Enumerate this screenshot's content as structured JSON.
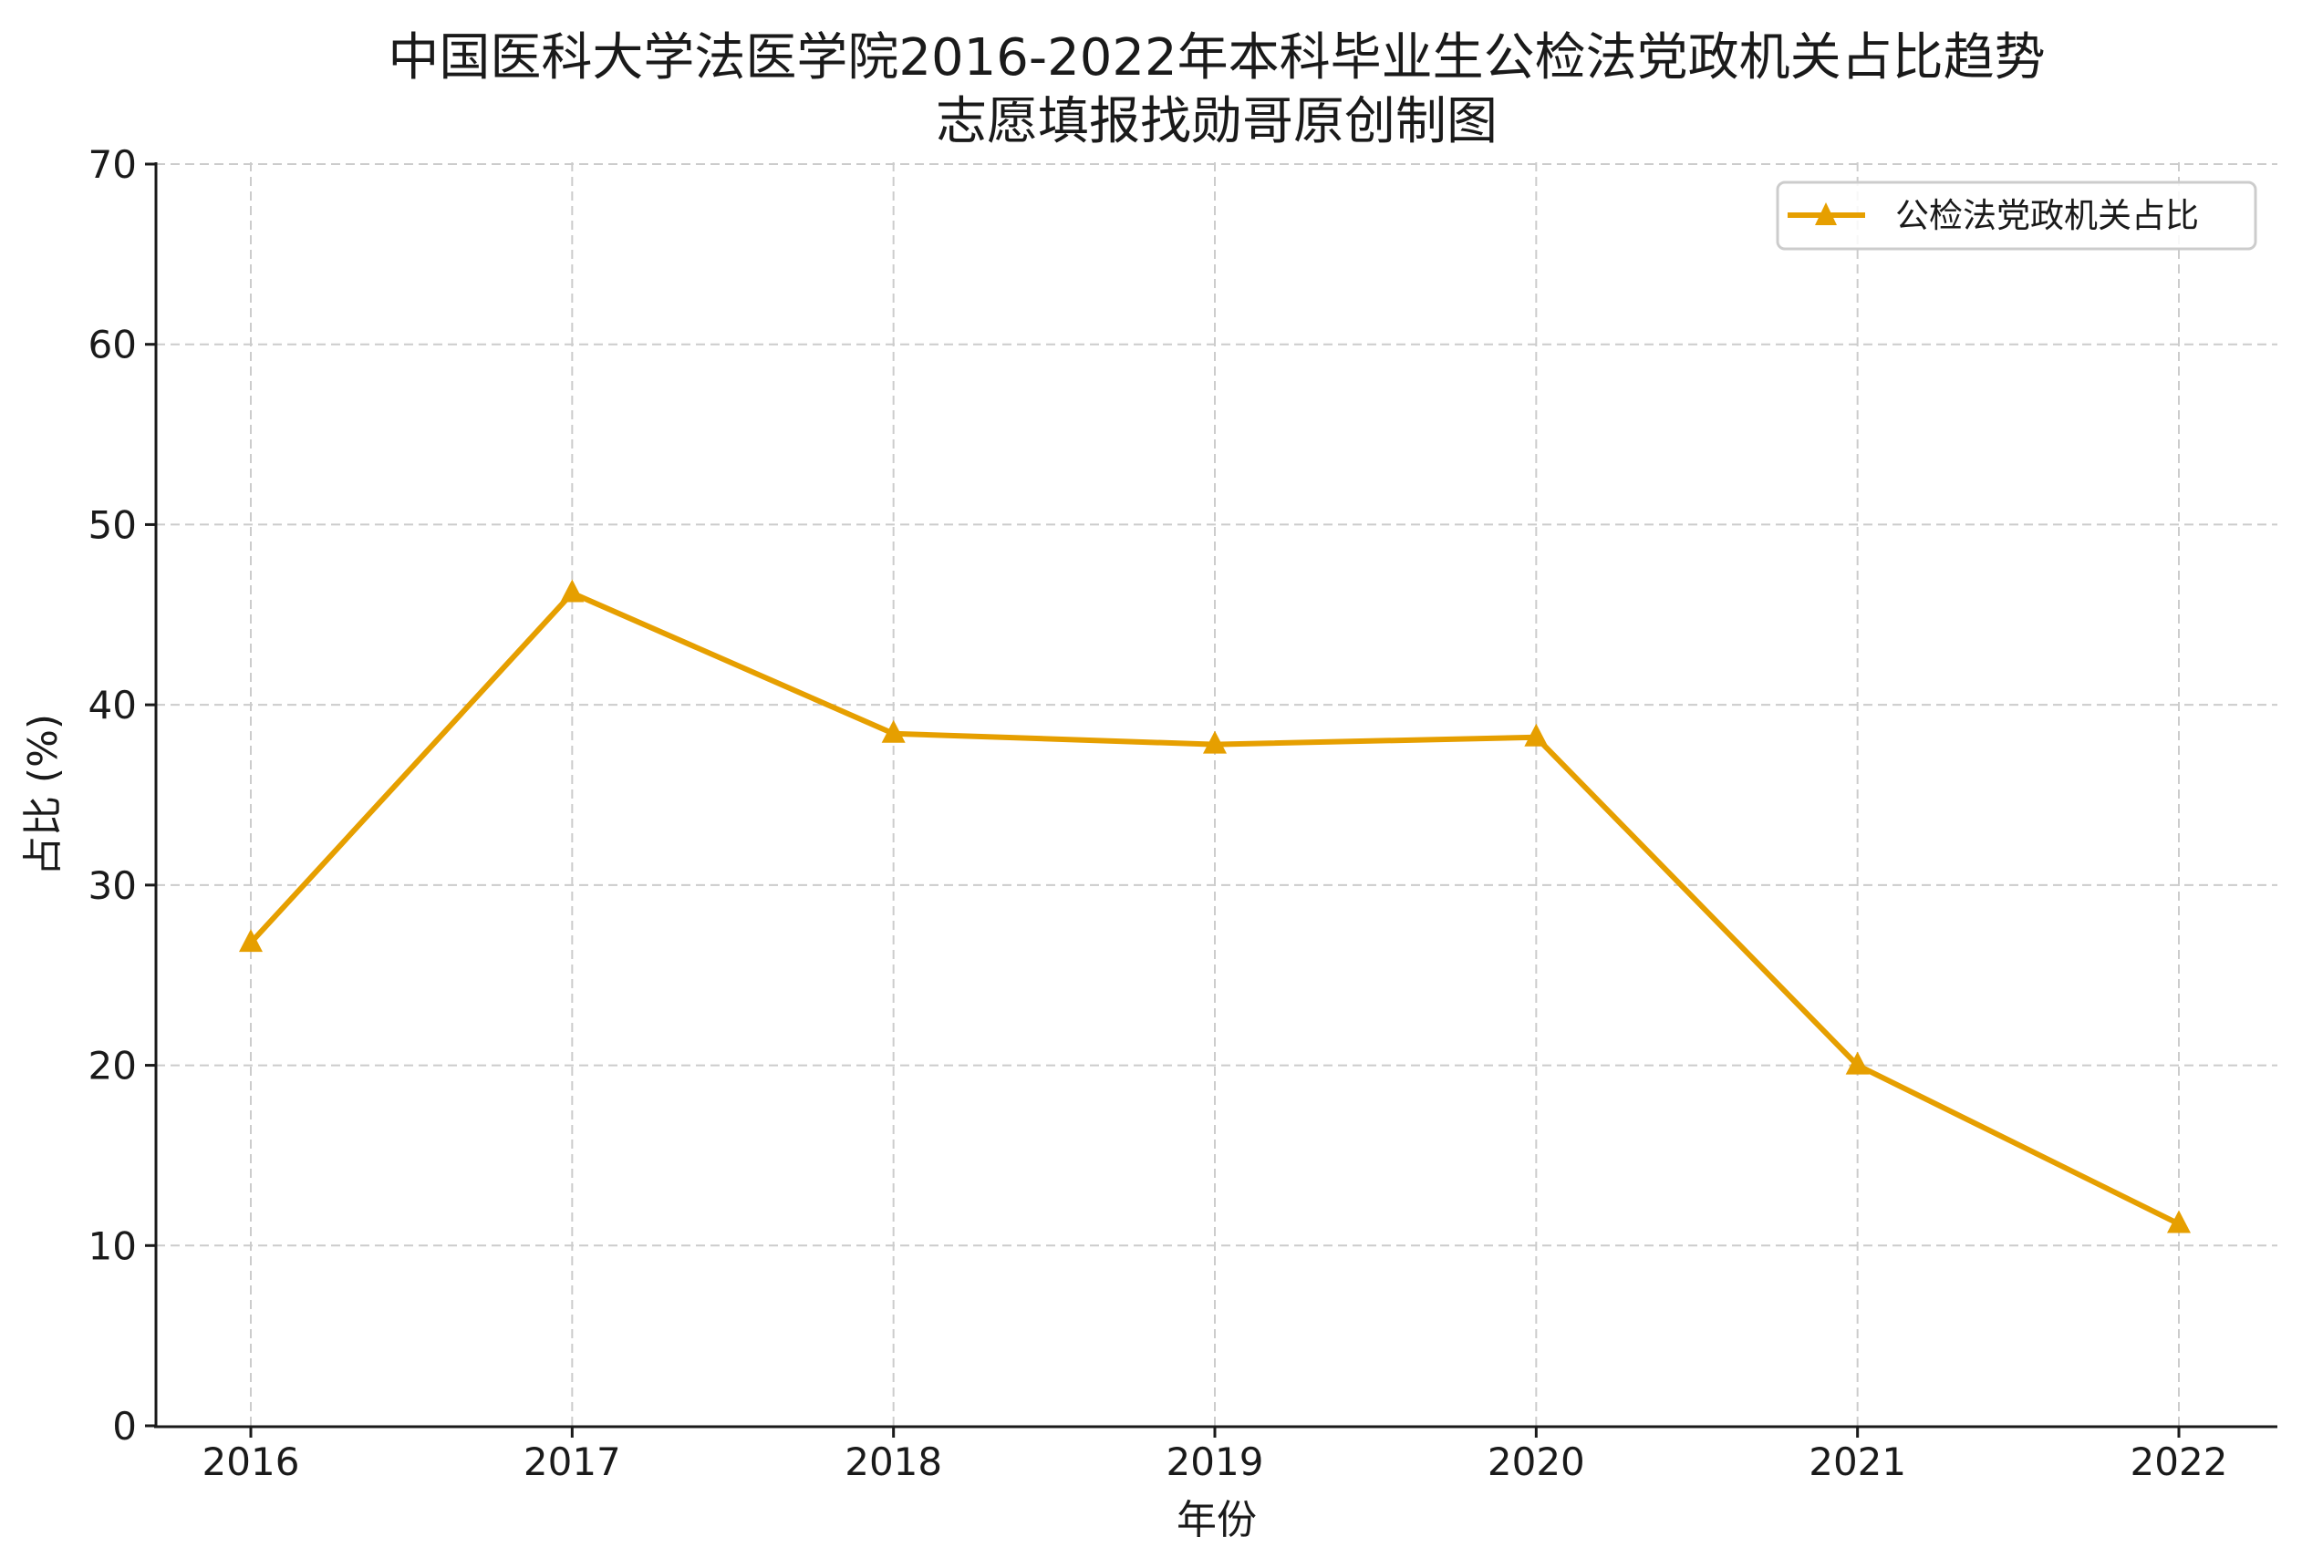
{
  "chart_data": {
    "type": "line",
    "title": "中国医科大学法医学院2016-2022年本科毕业生公检法党政机关占比趋势",
    "subtitle": "志愿填报找勋哥原创制图",
    "xlabel": "年份",
    "ylabel": "占比 (%)",
    "categories": [
      "2016",
      "2017",
      "2018",
      "2019",
      "2020",
      "2021",
      "2022"
    ],
    "series": [
      {
        "name": "公检法党政机关占比",
        "values": [
          26.8,
          46.2,
          38.4,
          37.8,
          38.2,
          20.0,
          11.2
        ],
        "color": "#E69F00",
        "marker": "triangle-up"
      }
    ],
    "ylim": [
      0,
      70
    ],
    "yticks": [
      "0",
      "10",
      "20",
      "30",
      "40",
      "50",
      "60",
      "70"
    ],
    "grid": true,
    "legend_position": "upper right"
  }
}
